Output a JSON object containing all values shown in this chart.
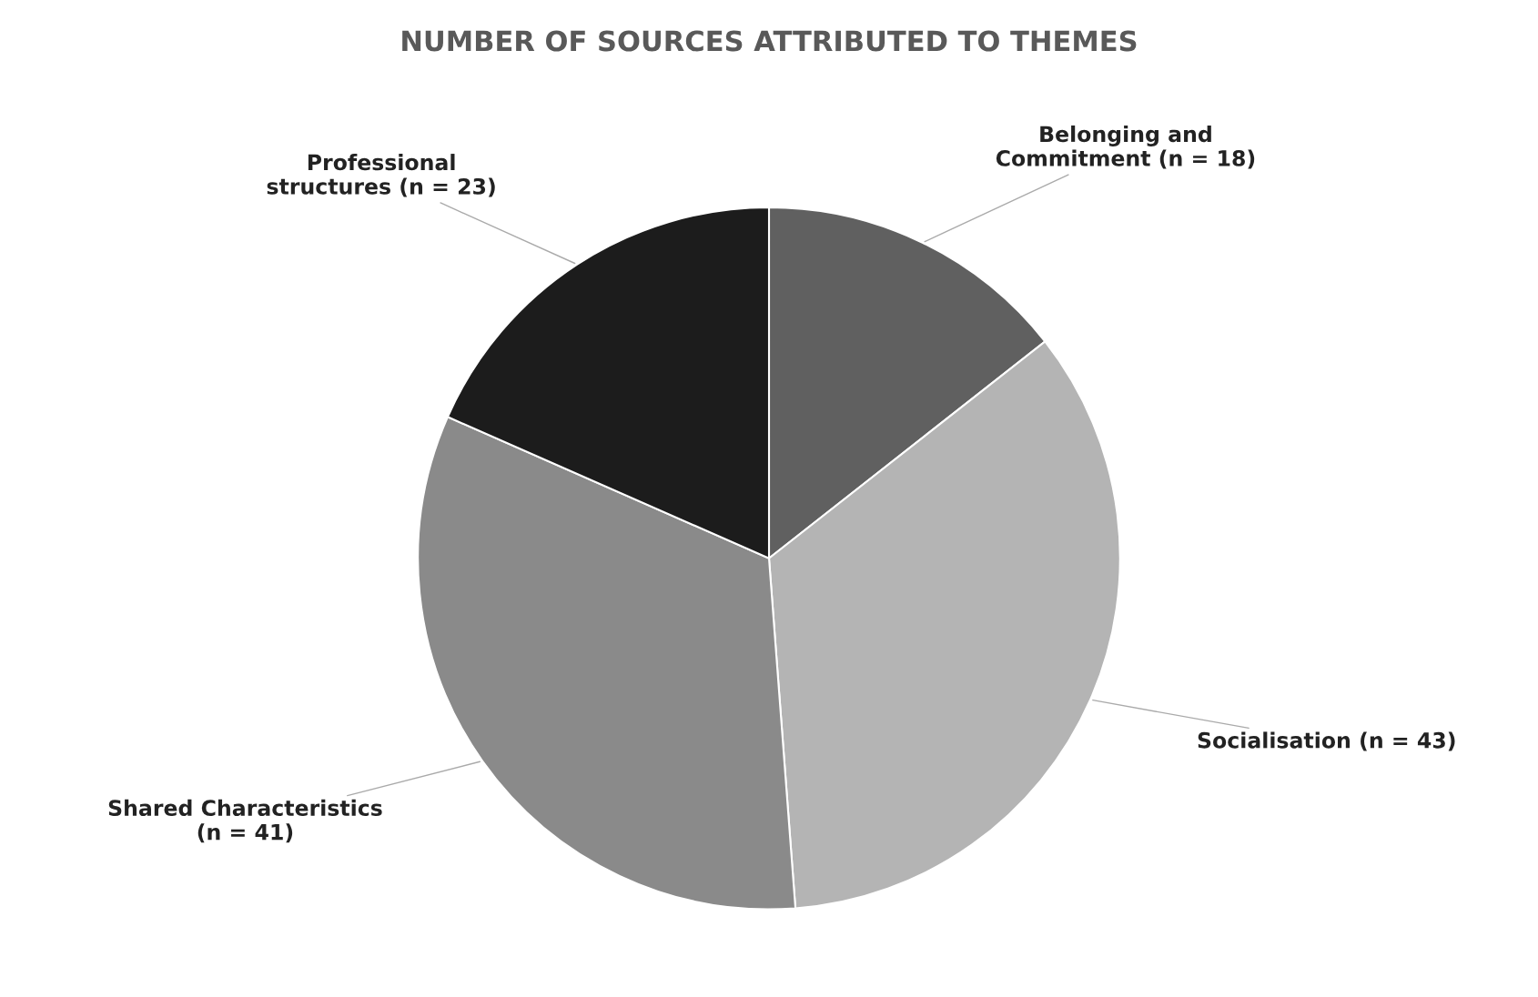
{
  "chart_data": {
    "type": "pie",
    "title": "NUMBER OF SOURCES ATTRIBUTED TO THEMES",
    "categories": [
      "Belonging and\nCommitment (n = 18)",
      "Socialisation (n = 43)",
      "Shared Characteristics\n(n = 41)",
      "Professional\nstructures (n = 23)"
    ],
    "values": [
      18,
      43,
      41,
      23
    ],
    "colors": [
      "#606060",
      "#b4b4b4",
      "#8a8a8a",
      "#1c1c1c"
    ]
  }
}
